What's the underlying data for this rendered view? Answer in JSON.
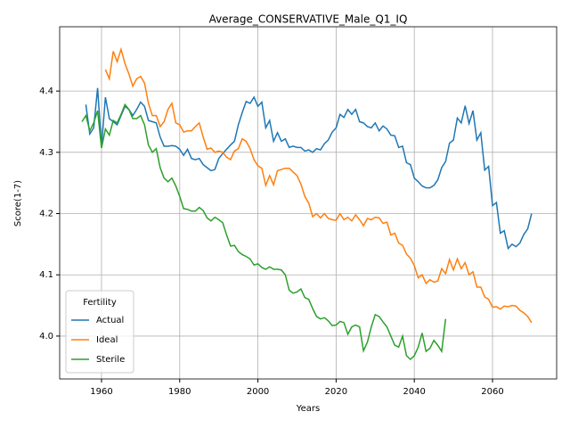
{
  "chart_data": {
    "type": "line",
    "title": "Average_CONSERVATIVE_Male_Q1_IQ",
    "x_label": "Years",
    "y_label": "Score(1-7)",
    "x": [
      1955,
      1956,
      1957,
      1958,
      1959,
      1960,
      1961,
      1962,
      1963,
      1964,
      1965,
      1966,
      1967,
      1968,
      1969,
      1970,
      1971,
      1972,
      1973,
      1974,
      1975,
      1976,
      1977,
      1978,
      1979,
      1980,
      1981,
      1982,
      1983,
      1984,
      1985,
      1986,
      1987,
      1988,
      1989,
      1990,
      1991,
      1992,
      1993,
      1994,
      1995,
      1996,
      1997,
      1998,
      1999,
      2000,
      2001,
      2002,
      2003,
      2004,
      2005,
      2006,
      2007,
      2008,
      2009,
      2010,
      2011,
      2012,
      2013,
      2014,
      2015,
      2016,
      2017,
      2018,
      2019,
      2020,
      2021,
      2022,
      2023,
      2024,
      2025,
      2026,
      2027,
      2028,
      2029,
      2030,
      2031,
      2032,
      2033,
      2034,
      2035,
      2036,
      2037,
      2038,
      2039,
      2040,
      2041,
      2042,
      2043,
      2044,
      2045,
      2046,
      2047,
      2048,
      2049,
      2050,
      2051,
      2052,
      2053,
      2054,
      2055,
      2056,
      2057,
      2058,
      2059,
      2060,
      2061,
      2062,
      2063,
      2064,
      2065,
      2066,
      2067,
      2068,
      2069,
      2070
    ],
    "series": [
      {
        "name": "Actual",
        "color": "#1f77b4",
        "values": [
          null,
          4.378,
          4.33,
          4.34,
          4.405,
          4.31,
          4.39,
          4.355,
          4.35,
          4.345,
          4.36,
          4.375,
          4.37,
          4.36,
          4.37,
          4.382,
          4.375,
          4.352,
          4.35,
          4.348,
          4.325,
          4.31,
          4.31,
          4.311,
          4.31,
          4.305,
          4.295,
          4.305,
          4.29,
          4.288,
          4.29,
          4.28,
          4.275,
          4.27,
          4.272,
          4.29,
          4.298,
          4.305,
          4.312,
          4.318,
          4.345,
          4.365,
          4.383,
          4.38,
          4.39,
          4.375,
          4.382,
          4.34,
          4.352,
          4.318,
          4.332,
          4.318,
          4.322,
          4.308,
          4.31,
          4.308,
          4.308,
          4.302,
          4.304,
          4.3,
          4.306,
          4.304,
          4.314,
          4.32,
          4.333,
          4.34,
          4.362,
          4.357,
          4.37,
          4.362,
          4.37,
          4.35,
          4.348,
          4.342,
          4.34,
          4.348,
          4.335,
          4.343,
          4.338,
          4.328,
          4.327,
          4.308,
          4.31,
          4.283,
          4.28,
          4.258,
          4.252,
          4.245,
          4.242,
          4.242,
          4.246,
          4.255,
          4.275,
          4.285,
          4.315,
          4.32,
          4.356,
          4.348,
          4.376,
          4.347,
          4.368,
          4.32,
          4.332,
          4.271,
          4.277,
          4.213,
          4.218,
          4.168,
          4.172,
          4.143,
          4.15,
          4.146,
          4.152,
          4.166,
          4.175,
          4.2
        ]
      },
      {
        "name": "Ideal",
        "color": "#ff7f0e",
        "values": [
          null,
          null,
          null,
          null,
          null,
          null,
          4.435,
          4.42,
          4.465,
          4.448,
          4.468,
          4.445,
          4.428,
          4.408,
          4.42,
          4.424,
          4.413,
          4.38,
          4.36,
          4.36,
          4.342,
          4.35,
          4.37,
          4.38,
          4.348,
          4.345,
          4.333,
          4.335,
          4.335,
          4.342,
          4.348,
          4.325,
          4.305,
          4.307,
          4.3,
          4.302,
          4.3,
          4.292,
          4.288,
          4.302,
          4.306,
          4.322,
          4.318,
          4.306,
          4.288,
          4.278,
          4.274,
          4.246,
          4.262,
          4.247,
          4.27,
          4.272,
          4.274,
          4.274,
          4.268,
          4.262,
          4.248,
          4.228,
          4.217,
          4.195,
          4.2,
          4.193,
          4.2,
          4.192,
          4.19,
          4.189,
          4.2,
          4.19,
          4.194,
          4.188,
          4.198,
          4.19,
          4.18,
          4.192,
          4.19,
          4.194,
          4.193,
          4.184,
          4.186,
          4.165,
          4.168,
          4.152,
          4.148,
          4.134,
          4.127,
          4.115,
          4.095,
          4.1,
          4.086,
          4.092,
          4.088,
          4.09,
          4.11,
          4.102,
          4.125,
          4.108,
          4.126,
          4.11,
          4.12,
          4.1,
          4.105,
          4.08,
          4.08,
          4.064,
          4.06,
          4.047,
          4.048,
          4.044,
          4.049,
          4.048,
          4.05,
          4.049,
          4.042,
          4.038,
          4.032,
          4.022
        ]
      },
      {
        "name": "Sterile",
        "color": "#2ca02c",
        "values": [
          4.35,
          4.36,
          4.335,
          4.348,
          4.368,
          4.307,
          4.338,
          4.328,
          4.352,
          4.348,
          4.362,
          4.378,
          4.37,
          4.355,
          4.355,
          4.36,
          4.345,
          4.312,
          4.3,
          4.306,
          4.275,
          4.258,
          4.252,
          4.258,
          4.245,
          4.228,
          4.208,
          4.207,
          4.204,
          4.204,
          4.21,
          4.205,
          4.193,
          4.188,
          4.194,
          4.19,
          4.185,
          4.165,
          4.147,
          4.148,
          4.138,
          4.133,
          4.13,
          4.126,
          4.116,
          4.118,
          4.112,
          4.109,
          4.113,
          4.109,
          4.109,
          4.108,
          4.1,
          4.075,
          4.07,
          4.072,
          4.077,
          4.063,
          4.06,
          4.045,
          4.032,
          4.028,
          4.03,
          4.025,
          4.017,
          4.018,
          4.024,
          4.022,
          4.003,
          4.015,
          4.018,
          4.015,
          3.976,
          3.99,
          4.015,
          4.035,
          4.032,
          4.023,
          4.015,
          4.0,
          3.985,
          3.982,
          4.0,
          3.968,
          3.962,
          3.968,
          3.982,
          4.005,
          3.975,
          3.98,
          3.993,
          3.985,
          3.975,
          4.028,
          null,
          null,
          null,
          null,
          null,
          null,
          null,
          null,
          null,
          null,
          null,
          null,
          null,
          null,
          null,
          null,
          null,
          null,
          null,
          null,
          null,
          null
        ]
      }
    ],
    "xlim": [
      1949.3,
      2076.4
    ],
    "ylim": [
      3.93,
      4.505
    ],
    "xticks": [
      1960,
      1980,
      2000,
      2020,
      2040,
      2060
    ],
    "yticks": [
      {
        "value": 4,
        "label": "4.0"
      },
      4.1,
      4.2,
      4.3,
      4.4
    ],
    "grid": true,
    "legend_title": "Fertility",
    "legend_loc": "lower left"
  }
}
